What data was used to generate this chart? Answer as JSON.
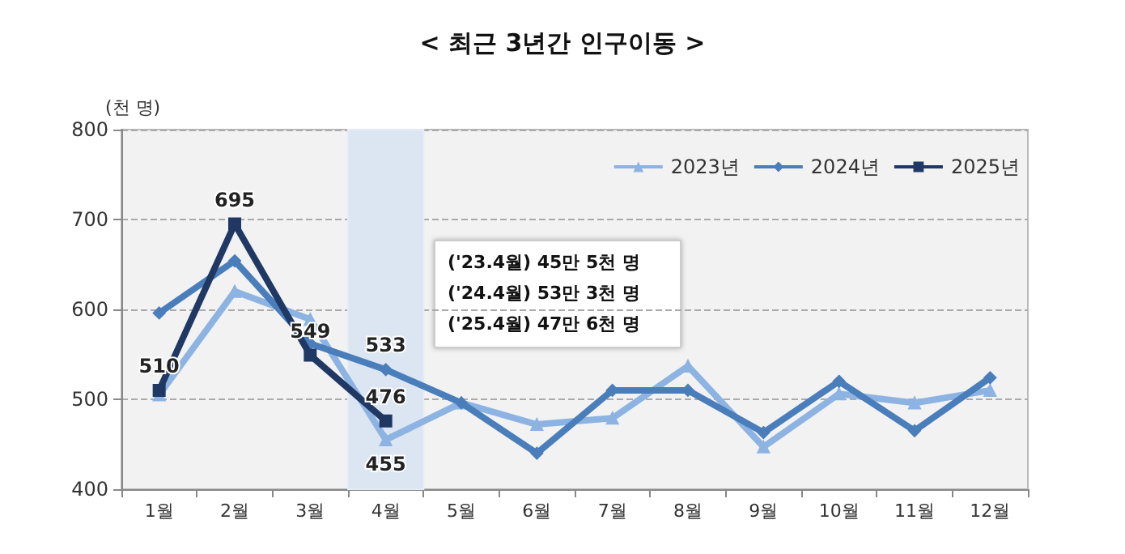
{
  "chart_data": {
    "type": "line",
    "title": "< 최근 3년간 인구이동 >",
    "ylabel": "(천 명)",
    "categories": [
      "1월",
      "2월",
      "3월",
      "4월",
      "5월",
      "6월",
      "7월",
      "8월",
      "9월",
      "10월",
      "11월",
      "12월"
    ],
    "series": [
      {
        "name": "2023년",
        "color": "#8db3e2",
        "marker": "triangle",
        "values": [
          505,
          620,
          589,
          455,
          496,
          472,
          479,
          537,
          447,
          506,
          496,
          510
        ],
        "value_labels": [
          null,
          null,
          null,
          "455",
          null,
          null,
          null,
          null,
          null,
          null,
          null,
          null
        ]
      },
      {
        "name": "2024년",
        "color": "#4a7ebb",
        "marker": "diamond",
        "values": [
          596,
          654,
          562,
          533,
          496,
          440,
          510,
          510,
          463,
          520,
          465,
          524
        ],
        "value_labels": [
          null,
          null,
          null,
          "533",
          null,
          null,
          null,
          null,
          null,
          null,
          null,
          null
        ]
      },
      {
        "name": "2025년",
        "color": "#1f3864",
        "marker": "square",
        "values": [
          510,
          695,
          549,
          476,
          null,
          null,
          null,
          null,
          null,
          null,
          null,
          null
        ],
        "value_labels": [
          "510",
          "695",
          "549",
          "476",
          null,
          null,
          null,
          null,
          null,
          null,
          null,
          null
        ]
      }
    ],
    "ylim": [
      400,
      800
    ],
    "yticks": [
      400,
      500,
      600,
      700,
      800
    ],
    "grid": "y",
    "legend": "top right",
    "bands": [
      {
        "axis": "x",
        "from": "4월",
        "to": "4월",
        "color": "#dce6f2"
      }
    ],
    "annotations": [
      "('23.4월) 45만 5천 명",
      "('24.4월) 53만 3천 명",
      "('25.4월) 47만 6천 명"
    ]
  }
}
